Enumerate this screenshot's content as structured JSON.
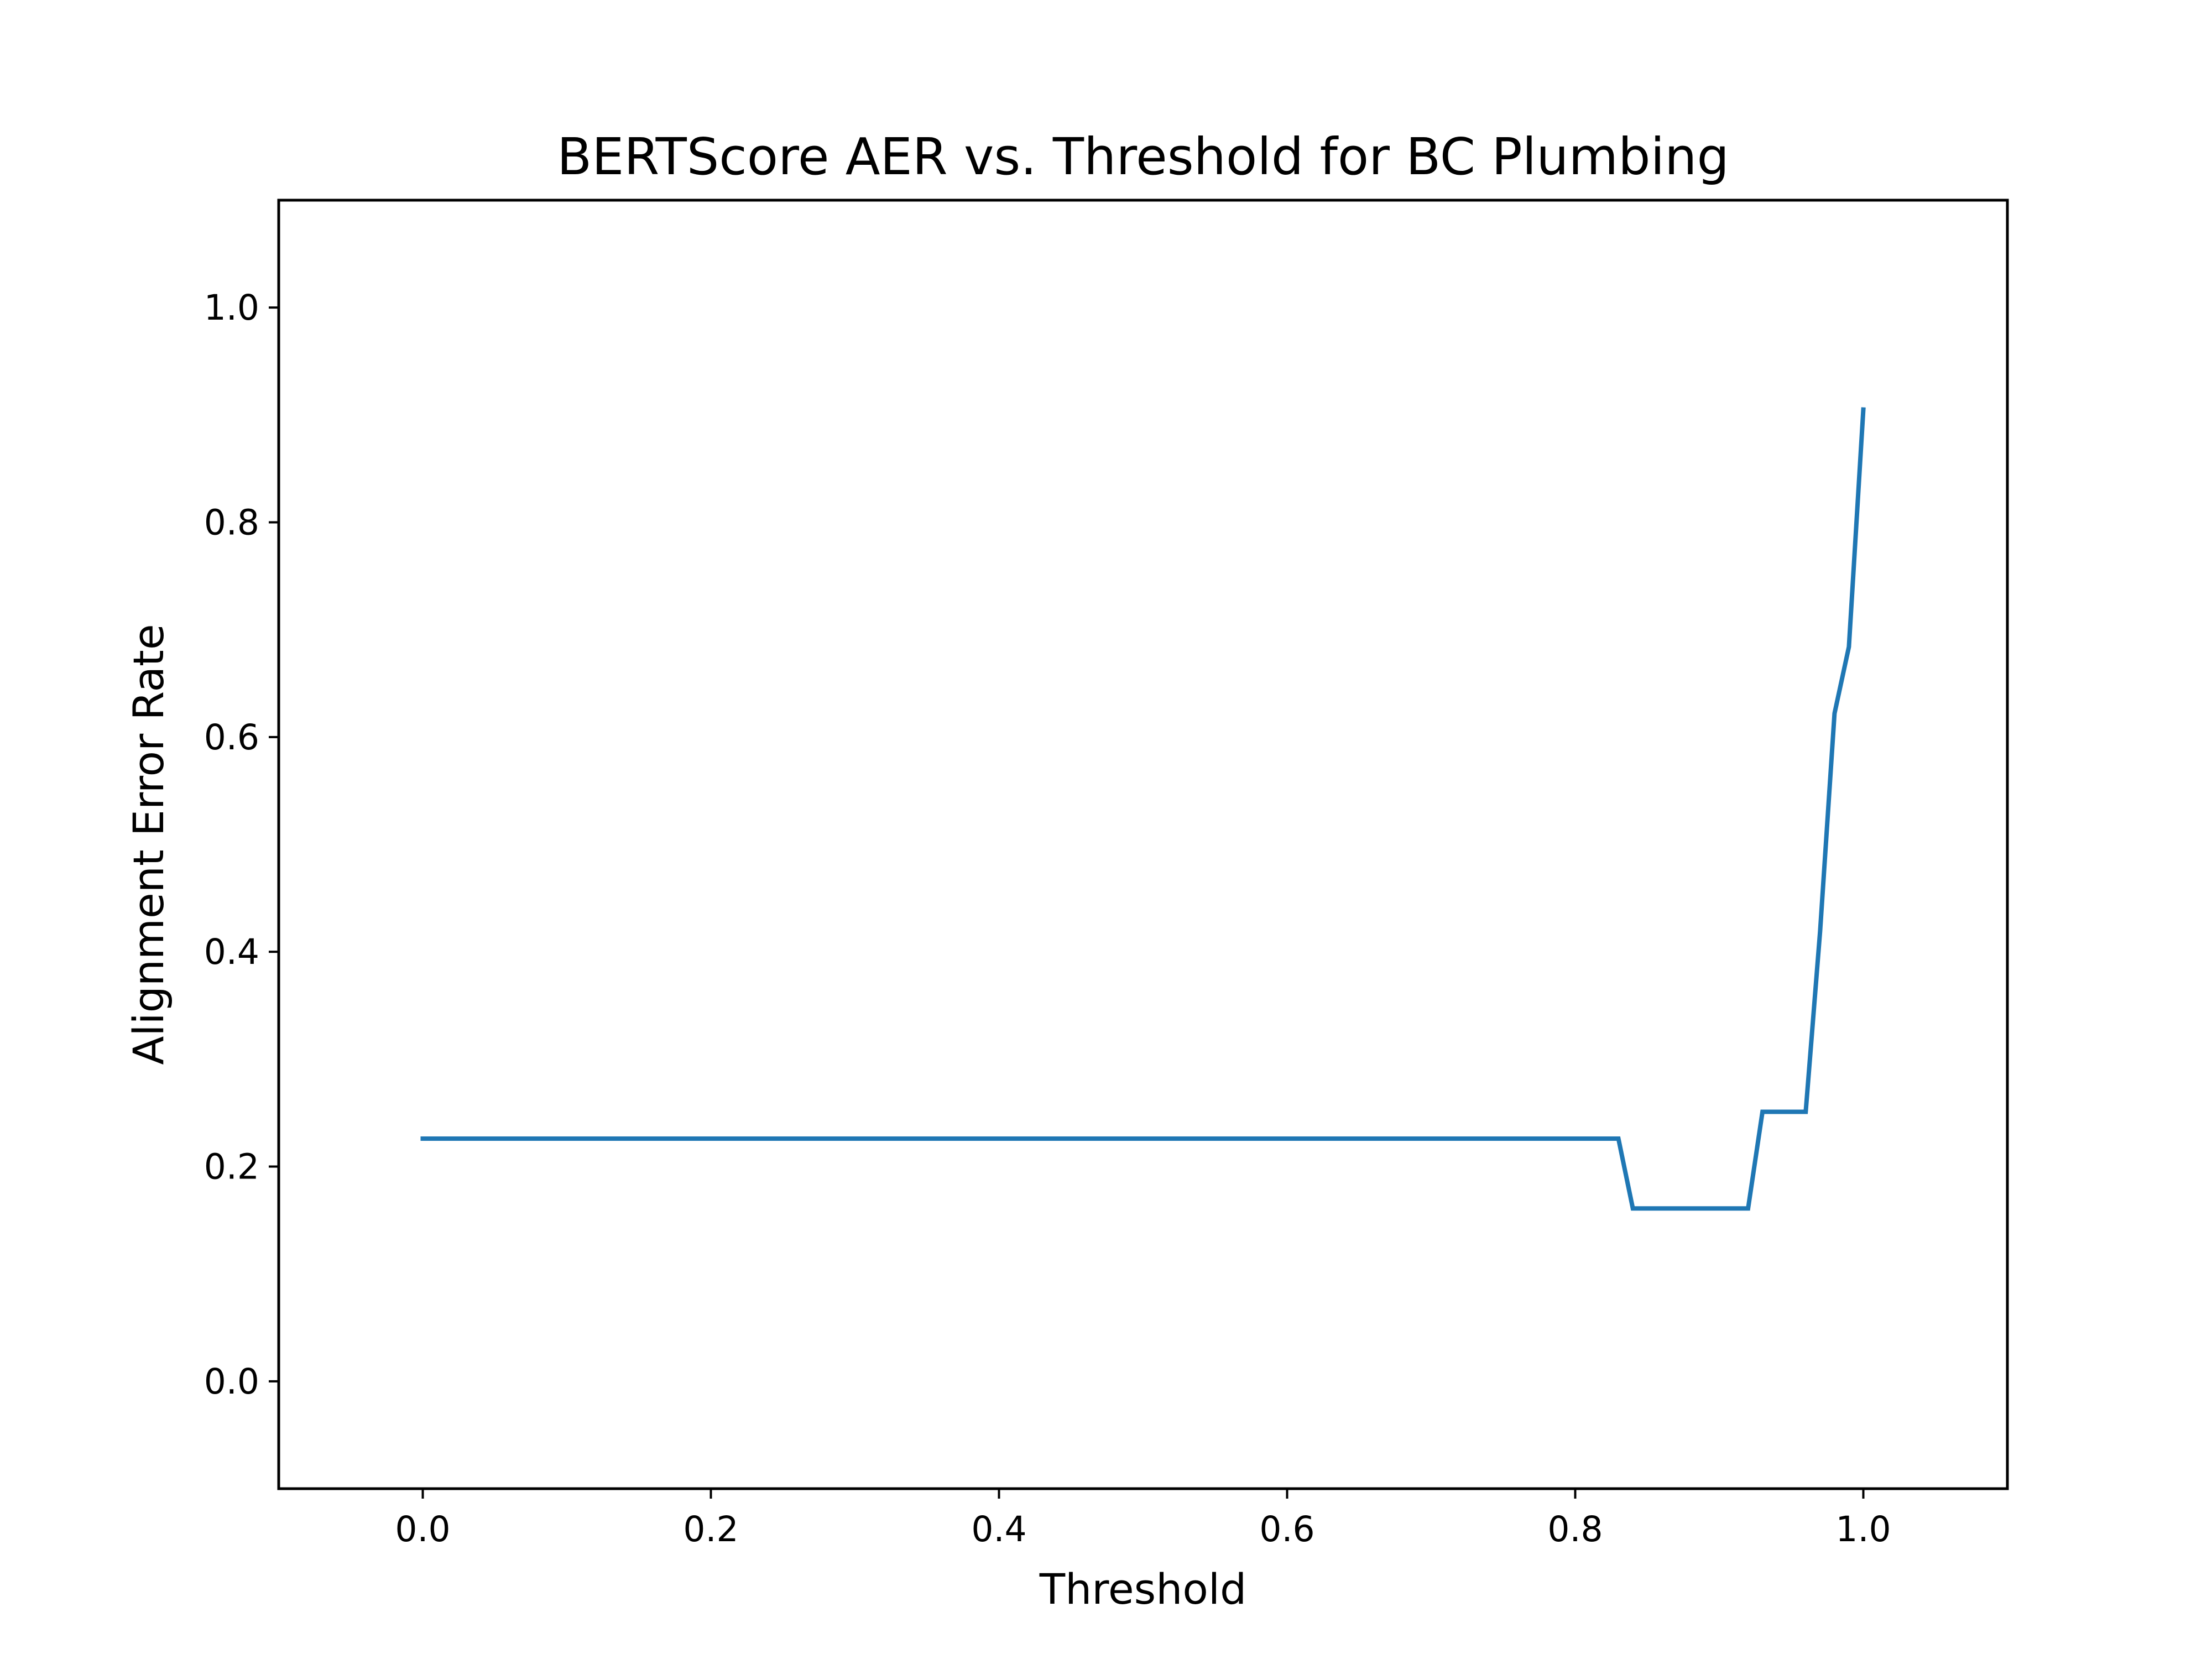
{
  "chart_data": {
    "type": "line",
    "title": "BERTScore AER vs. Threshold for BC Plumbing",
    "xlabel": "Threshold",
    "ylabel": "Alignment Error Rate",
    "xlim": [
      -0.1,
      1.1
    ],
    "ylim": [
      -0.1,
      1.1
    ],
    "xticks": [
      0.0,
      0.2,
      0.4,
      0.6,
      0.8,
      1.0
    ],
    "xtick_labels": [
      "0.0",
      "0.2",
      "0.4",
      "0.6",
      "0.8",
      "1.0"
    ],
    "yticks": [
      0.0,
      0.2,
      0.4,
      0.6,
      0.8,
      1.0
    ],
    "ytick_labels": [
      "0.0",
      "0.2",
      "0.4",
      "0.6",
      "0.8",
      "1.0"
    ],
    "grid": false,
    "legend": "none",
    "series": [
      {
        "color": "#1f77b4",
        "x": [
          0.0,
          0.83,
          0.84,
          0.92,
          0.93,
          0.96,
          0.97,
          0.98,
          0.99,
          1.0
        ],
        "y": [
          0.226,
          0.226,
          0.161,
          0.161,
          0.251,
          0.251,
          0.419,
          0.622,
          0.684,
          0.905
        ]
      }
    ]
  }
}
